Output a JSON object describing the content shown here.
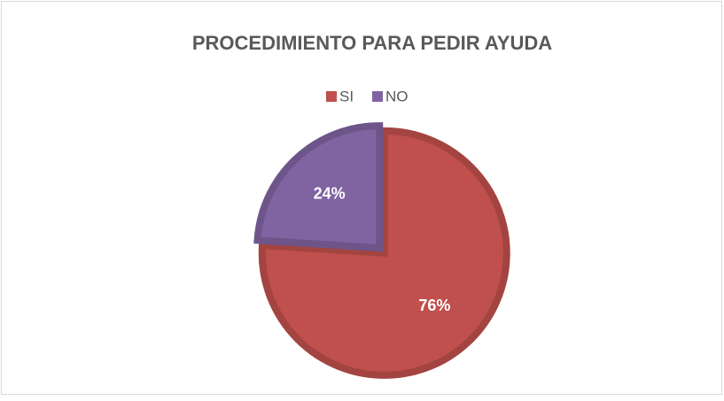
{
  "chart_data": {
    "type": "pie",
    "title": "PROCEDIMIENTO PARA PEDIR AYUDA",
    "categories": [
      "SI",
      "NO"
    ],
    "values": [
      76,
      24
    ],
    "value_labels": [
      "76%",
      "24%"
    ],
    "colors": [
      "#c0504d",
      "#8064a2"
    ],
    "legend": "top"
  }
}
